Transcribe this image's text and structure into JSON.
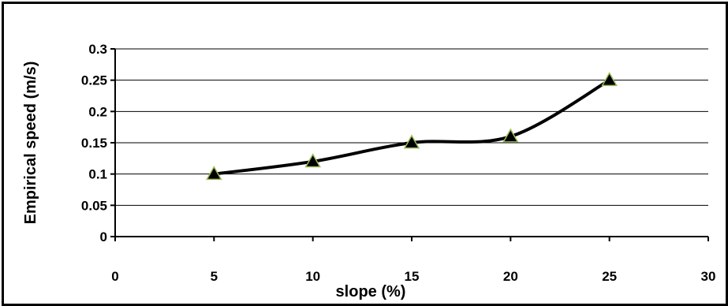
{
  "chart_data": {
    "type": "line",
    "x": [
      5,
      10,
      15,
      20,
      25
    ],
    "series": [
      {
        "values": [
          0.1,
          0.12,
          0.15,
          0.16,
          0.25
        ]
      }
    ],
    "xlabel": "slope (%)",
    "ylabel": "Empirical speed (m/s)",
    "xlim": [
      0,
      30
    ],
    "ylim": [
      0,
      0.3
    ],
    "x_ticks": [
      "0",
      "5",
      "10",
      "15",
      "20",
      "25",
      "30"
    ],
    "y_ticks": [
      "0",
      "0.05",
      "0.1",
      "0.15",
      "0.2",
      "0.25",
      "0.3"
    ],
    "grid": "horizontal",
    "legend": "none",
    "marker": "triangle",
    "line_style": "smoothed",
    "colors": {
      "line": "#000000",
      "marker_fill": "#000000",
      "marker_edge": "#9bbb59"
    }
  }
}
